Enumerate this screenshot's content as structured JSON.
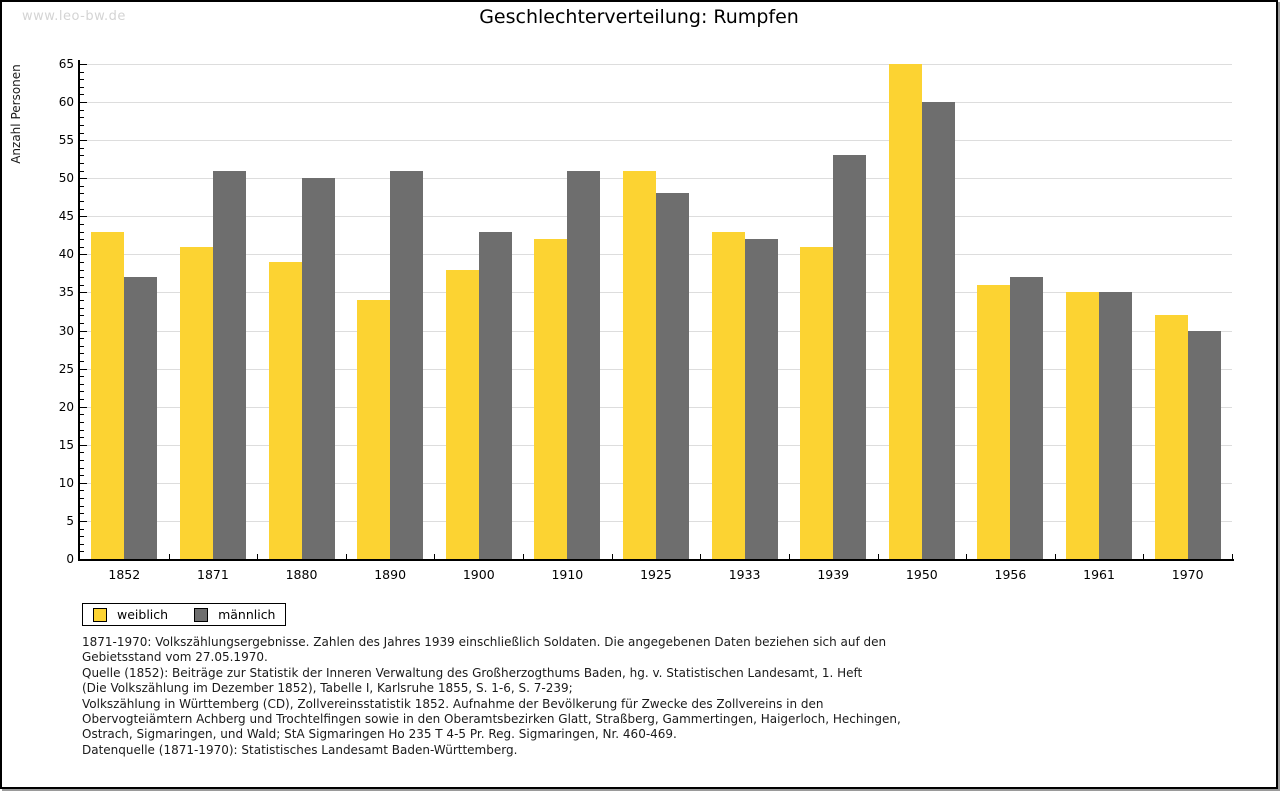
{
  "watermark": "www.leo-bw.de",
  "title": "Geschlechterverteilung: Rumpfen",
  "chart_data": {
    "type": "bar",
    "title": "Geschlechterverteilung: Rumpfen",
    "xlabel": "",
    "ylabel": "Anzahl Personen",
    "categories": [
      "1852",
      "1871",
      "1880",
      "1890",
      "1900",
      "1910",
      "1925",
      "1933",
      "1939",
      "1950",
      "1956",
      "1961",
      "1970"
    ],
    "series": [
      {
        "name": "weiblich",
        "color": "#FCD332",
        "values": [
          43,
          41,
          39,
          34,
          38,
          42,
          51,
          43,
          41,
          65,
          36,
          35,
          32
        ]
      },
      {
        "name": "männlich",
        "color": "#6E6E6E",
        "values": [
          37,
          51,
          50,
          51,
          43,
          51,
          48,
          42,
          53,
          60,
          37,
          35,
          30
        ]
      }
    ],
    "ylim": [
      0,
      65
    ],
    "ytick_step": 5,
    "minor_tick_step": 1,
    "grid": true,
    "grid_color": "#DDDDDD",
    "legend_position": "bottom-left"
  },
  "footer": {
    "source_lines": [
      "1871-1970: Volkszählungsergebnisse. Zahlen des Jahres 1939 einschließlich Soldaten. Die angegebenen Daten beziehen sich auf den",
      "Gebietsstand vom 27.05.1970.",
      "Quelle (1852): Beiträge zur Statistik der Inneren Verwaltung des Großherzogthums Baden, hg. v. Statistischen Landesamt, 1. Heft",
      "(Die Volkszählung im Dezember 1852), Tabelle I, Karlsruhe 1855, S. 1-6, S. 7-239;",
      "Volkszählung in Württemberg (CD), Zollvereinsstatistik 1852. Aufnahme der Bevölkerung für Zwecke des Zollvereins in den",
      "Obervogteiämtern Achberg und Trochtelfingen sowie in den Oberamtsbezirken Glatt, Straßberg, Gammertingen, Haigerloch, Hechingen,",
      "Ostrach, Sigmaringen, und Wald; StA Sigmaringen Ho 235 T 4-5 Pr. Reg. Sigmaringen, Nr. 460-469."
    ],
    "datasource": "Datenquelle (1871-1970): Statistisches Landesamt Baden-Württemberg."
  }
}
